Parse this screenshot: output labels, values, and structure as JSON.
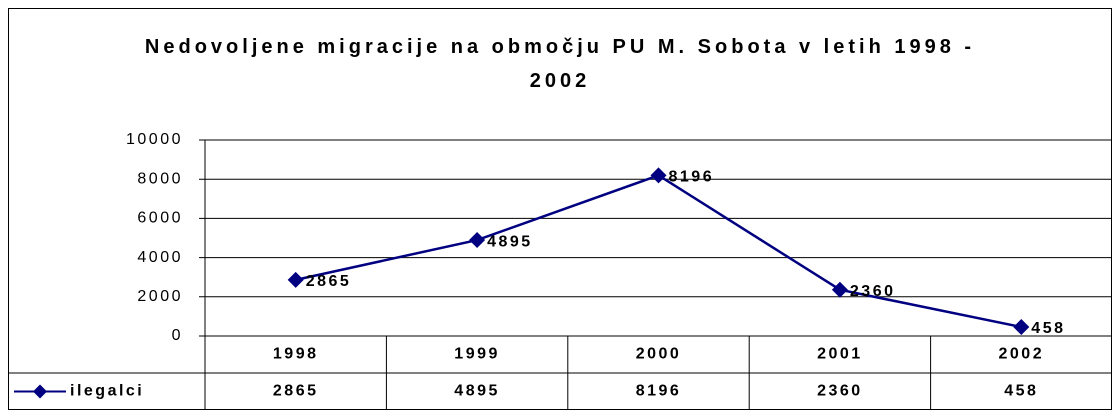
{
  "chart_data": {
    "type": "line",
    "title": "Nedovoljene migracije na območju PU M. Sobota v letih 1998 - 2002",
    "categories": [
      "1998",
      "1999",
      "2000",
      "2001",
      "2002"
    ],
    "series": [
      {
        "name": "ilegalci",
        "color": "#000080",
        "values": [
          2865,
          4895,
          8196,
          2360,
          458
        ]
      }
    ],
    "ylim": [
      0,
      10000
    ],
    "yticks": [
      0,
      2000,
      4000,
      6000,
      8000,
      10000
    ],
    "grid": true,
    "data_table": true
  }
}
